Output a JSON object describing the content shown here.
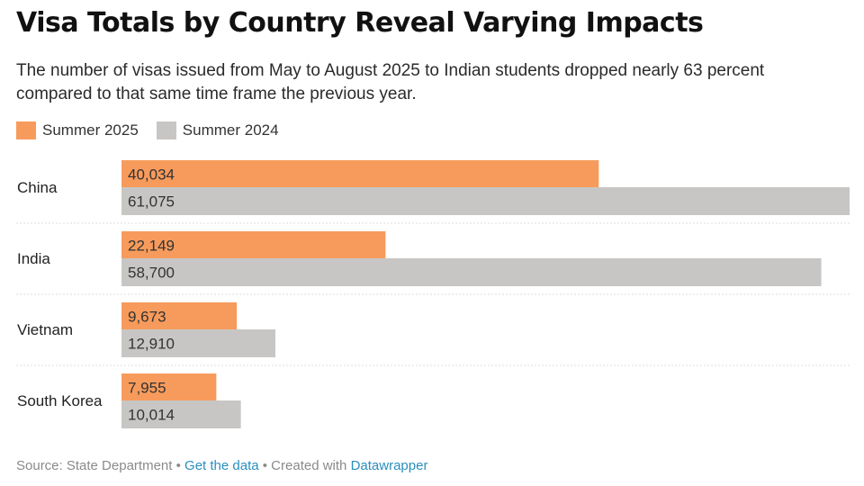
{
  "title": "Visa Totals by Country Reveal Varying Impacts",
  "subtitle": "The number of visas issued from May to August 2025 to Indian students dropped nearly 63 percent compared to that same time frame the previous year.",
  "colors": {
    "summer_2025": "#f79b5c",
    "summer_2024": "#c8c6c4",
    "separator": "#dcdcdc"
  },
  "chart_data": {
    "type": "bar",
    "orientation": "horizontal",
    "categories": [
      "China",
      "India",
      "Vietnam",
      "South Korea"
    ],
    "series": [
      {
        "name": "Summer 2025",
        "values": [
          40034,
          22149,
          9673,
          7955
        ],
        "labels": [
          "40,034",
          "22,149",
          "9,673",
          "7,955"
        ]
      },
      {
        "name": "Summer 2024",
        "values": [
          61075,
          58700,
          12910,
          10014
        ],
        "labels": [
          "61,075",
          "58,700",
          "12,910",
          "10,014"
        ]
      }
    ],
    "xlim": [
      0,
      61075
    ],
    "legend_position": "top-left",
    "grid": false
  },
  "footer": {
    "source": "Source: State Department",
    "sep1": " • ",
    "get_data": "Get the data",
    "sep2": " • Created with ",
    "tool": "Datawrapper"
  }
}
